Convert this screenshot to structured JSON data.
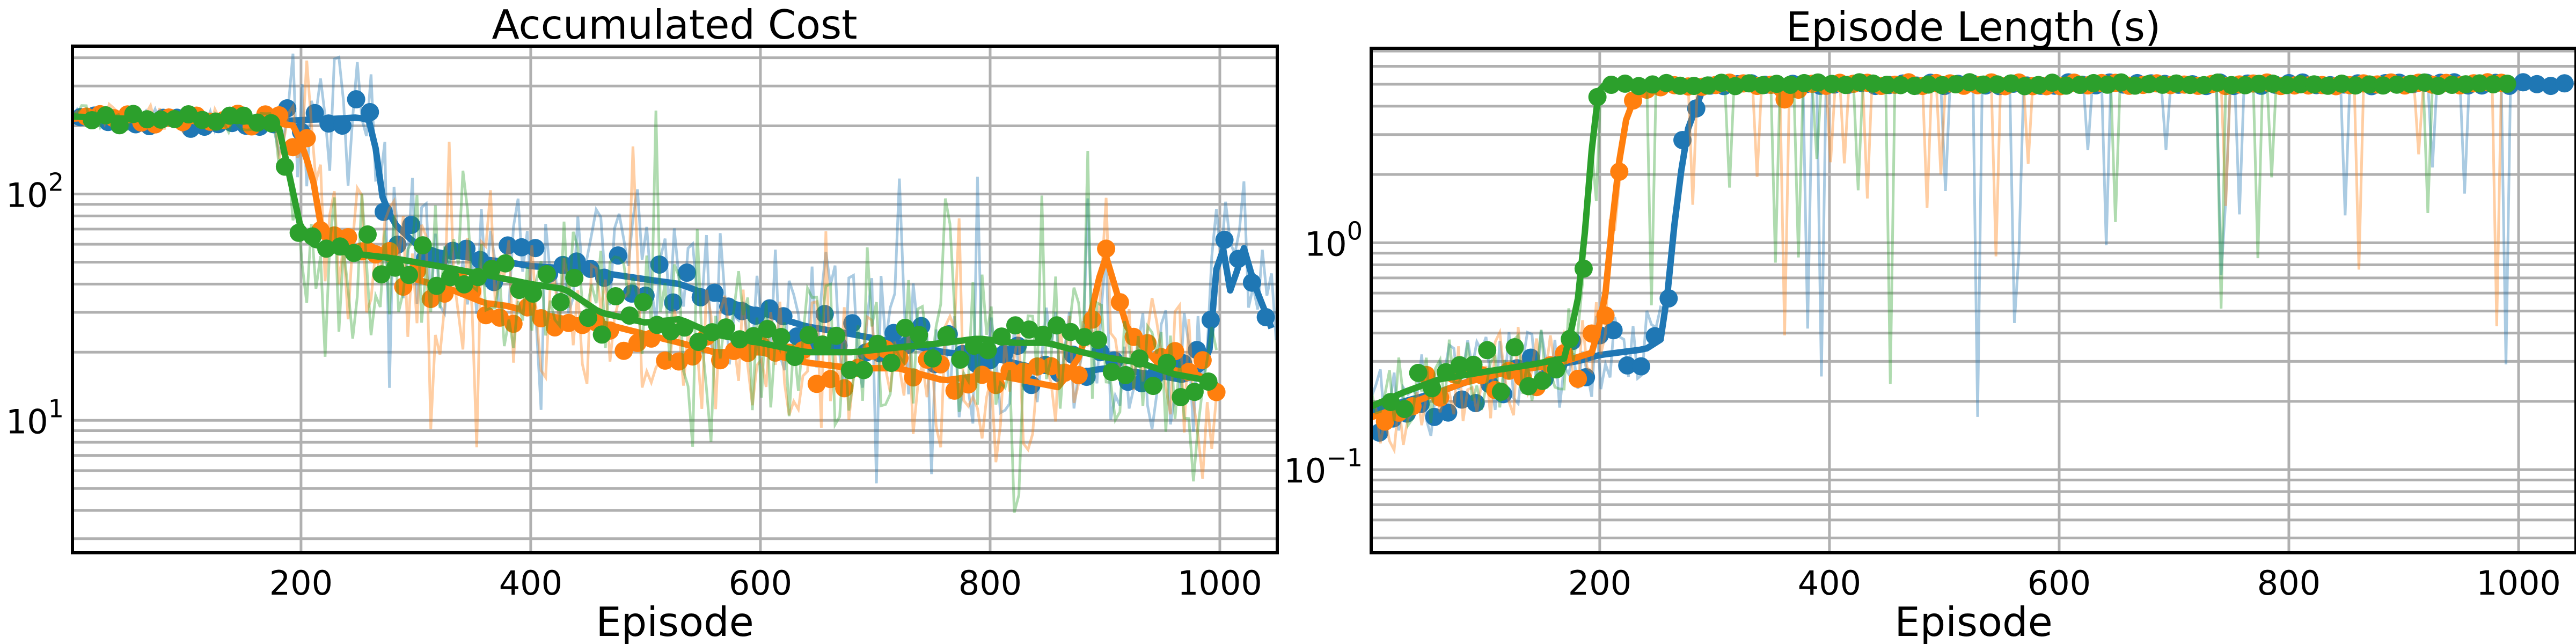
{
  "colors": {
    "run_blue": "#1f77b4",
    "run_orange": "#ff7f0e",
    "run_green": "#2ca02c",
    "grid": "#b0b0b0"
  },
  "chart_data": [
    {
      "type": "line",
      "title": "Accumulated Cost",
      "xlabel": "Episode",
      "ylabel": "",
      "yscale": "log",
      "xlim": [
        1,
        1050
      ],
      "ylim": [
        2.6,
        450
      ],
      "grid": true,
      "xticks": [
        "200",
        "400",
        "600",
        "800",
        "1000"
      ],
      "yticks": [
        {
          "base": "10",
          "exp": "1",
          "value": 10
        },
        {
          "base": "10",
          "exp": "2",
          "value": 100
        }
      ],
      "series": [
        {
          "color": "#1f77b4",
          "points": [
            [
              1,
              210
            ],
            [
              60,
              215
            ],
            [
              100,
              205
            ],
            [
              150,
              212
            ],
            [
              180,
              210
            ],
            [
              200,
              212
            ],
            [
              230,
              215
            ],
            [
              250,
              218
            ],
            [
              262,
              210
            ],
            [
              270,
              100
            ],
            [
              280,
              75
            ],
            [
              300,
              60
            ],
            [
              320,
              55
            ],
            [
              350,
              52
            ],
            [
              380,
              50
            ],
            [
              400,
              48
            ],
            [
              430,
              47
            ],
            [
              460,
              45
            ],
            [
              500,
              42
            ],
            [
              530,
              40
            ],
            [
              560,
              35
            ],
            [
              600,
              30
            ],
            [
              640,
              26
            ],
            [
              680,
              24
            ],
            [
              720,
              22
            ],
            [
              760,
              20
            ],
            [
              800,
              19
            ],
            [
              840,
              17
            ],
            [
              870,
              16
            ],
            [
              900,
              17
            ],
            [
              940,
              16
            ],
            [
              970,
              15
            ],
            [
              990,
              18
            ],
            [
              1000,
              70
            ],
            [
              1010,
              35
            ],
            [
              1020,
              60
            ],
            [
              1030,
              40
            ],
            [
              1050,
              22
            ]
          ]
        },
        {
          "color": "#ff7f0e",
          "points": [
            [
              1,
              215
            ],
            [
              50,
              225
            ],
            [
              100,
              210
            ],
            [
              150,
              215
            ],
            [
              180,
              205
            ],
            [
              195,
              200
            ],
            [
              210,
              120
            ],
            [
              220,
              60
            ],
            [
              240,
              55
            ],
            [
              260,
              60
            ],
            [
              280,
              50
            ],
            [
              300,
              42
            ],
            [
              330,
              38
            ],
            [
              360,
              33
            ],
            [
              380,
              32
            ],
            [
              400,
              30
            ],
            [
              430,
              28
            ],
            [
              460,
              27
            ],
            [
              500,
              24
            ],
            [
              530,
              22
            ],
            [
              560,
              20
            ],
            [
              600,
              20
            ],
            [
              640,
              18
            ],
            [
              680,
              17
            ],
            [
              720,
              17
            ],
            [
              760,
              15
            ],
            [
              800,
              16
            ],
            [
              830,
              15
            ],
            [
              860,
              14
            ],
            [
              880,
              20
            ],
            [
              900,
              55
            ],
            [
              920,
              25
            ],
            [
              950,
              17
            ],
            [
              980,
              16
            ],
            [
              1000,
              14
            ]
          ]
        },
        {
          "color": "#2ca02c",
          "points": [
            [
              1,
              220
            ],
            [
              50,
              215
            ],
            [
              100,
              215
            ],
            [
              150,
              210
            ],
            [
              180,
              205
            ],
            [
              190,
              120
            ],
            [
              200,
              70
            ],
            [
              210,
              60
            ],
            [
              240,
              55
            ],
            [
              280,
              52
            ],
            [
              320,
              48
            ],
            [
              360,
              44
            ],
            [
              400,
              40
            ],
            [
              430,
              38
            ],
            [
              460,
              30
            ],
            [
              500,
              27
            ],
            [
              530,
              28
            ],
            [
              560,
              24
            ],
            [
              600,
              22
            ],
            [
              640,
              20
            ],
            [
              680,
              20
            ],
            [
              720,
              21
            ],
            [
              760,
              22
            ],
            [
              790,
              23
            ],
            [
              820,
              22
            ],
            [
              850,
              22
            ],
            [
              880,
              20
            ],
            [
              900,
              19
            ],
            [
              930,
              18
            ],
            [
              960,
              16
            ],
            [
              990,
              15
            ],
            [
              1000,
              14
            ]
          ]
        }
      ]
    },
    {
      "type": "line",
      "title": "Episode Length (s)",
      "xlabel": "Episode",
      "ylabel": "",
      "yscale": "log",
      "xlim": [
        1,
        1050
      ],
      "ylim": [
        0.043,
        7.2
      ],
      "grid": true,
      "xticks": [
        "200",
        "400",
        "600",
        "800",
        "1000"
      ],
      "yticks": [
        {
          "base": "10",
          "exp": "−1",
          "value": 0.1
        },
        {
          "base": "10",
          "exp": "0",
          "value": 1
        }
      ],
      "series": [
        {
          "color": "#1f77b4",
          "points": [
            [
              1,
              0.18
            ],
            [
              30,
              0.2
            ],
            [
              60,
              0.22
            ],
            [
              100,
              0.26
            ],
            [
              140,
              0.28
            ],
            [
              180,
              0.3
            ],
            [
              200,
              0.32
            ],
            [
              220,
              0.33
            ],
            [
              240,
              0.34
            ],
            [
              255,
              0.38
            ],
            [
              265,
              1.2
            ],
            [
              275,
              3.0
            ],
            [
              290,
              4.8
            ],
            [
              320,
              5.0
            ],
            [
              400,
              5.0
            ],
            [
              600,
              5.0
            ],
            [
              800,
              5.0
            ],
            [
              1000,
              5.0
            ],
            [
              1050,
              5.0
            ]
          ]
        },
        {
          "color": "#ff7f0e",
          "points": [
            [
              1,
              0.17
            ],
            [
              40,
              0.2
            ],
            [
              80,
              0.24
            ],
            [
              120,
              0.27
            ],
            [
              160,
              0.29
            ],
            [
              195,
              0.33
            ],
            [
              205,
              0.6
            ],
            [
              215,
              2.0
            ],
            [
              225,
              4.0
            ],
            [
              240,
              4.8
            ],
            [
              300,
              5.0
            ],
            [
              350,
              5.0
            ],
            [
              360,
              4.2
            ],
            [
              380,
              5.0
            ],
            [
              600,
              5.0
            ],
            [
              800,
              5.0
            ],
            [
              990,
              5.0
            ]
          ]
        },
        {
          "color": "#2ca02c",
          "points": [
            [
              1,
              0.19
            ],
            [
              30,
              0.22
            ],
            [
              60,
              0.25
            ],
            [
              100,
              0.27
            ],
            [
              140,
              0.29
            ],
            [
              170,
              0.31
            ],
            [
              182,
              0.6
            ],
            [
              190,
              1.6
            ],
            [
              195,
              3.5
            ],
            [
              200,
              5.0
            ],
            [
              300,
              5.0
            ],
            [
              600,
              5.0
            ],
            [
              800,
              5.0
            ],
            [
              990,
              5.0
            ]
          ]
        }
      ]
    }
  ]
}
